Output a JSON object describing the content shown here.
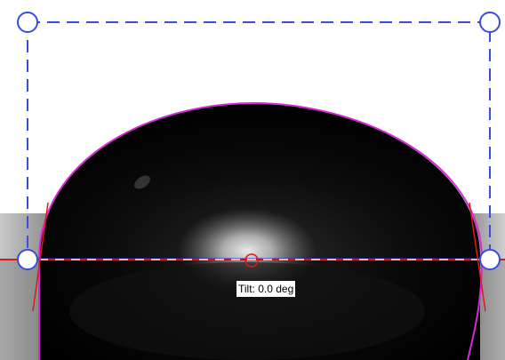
{
  "measurement": {
    "tilt_label": "Tilt: 0.0 deg"
  },
  "colors": {
    "bounding_box": "#3a4be0",
    "drop_fit_contour": "#d62ad6",
    "baseline": "#e01818",
    "baseline_overlay": "#2a2ad0",
    "tangent_lines": "#e01818",
    "handles": "#3a4be0",
    "center_marker": "#e01818",
    "background": "#ffffff",
    "droplet": "#0a0a0a"
  },
  "icons": {
    "corner_handle": "circle-handle-icon",
    "center_marker": "circle-marker-icon"
  }
}
